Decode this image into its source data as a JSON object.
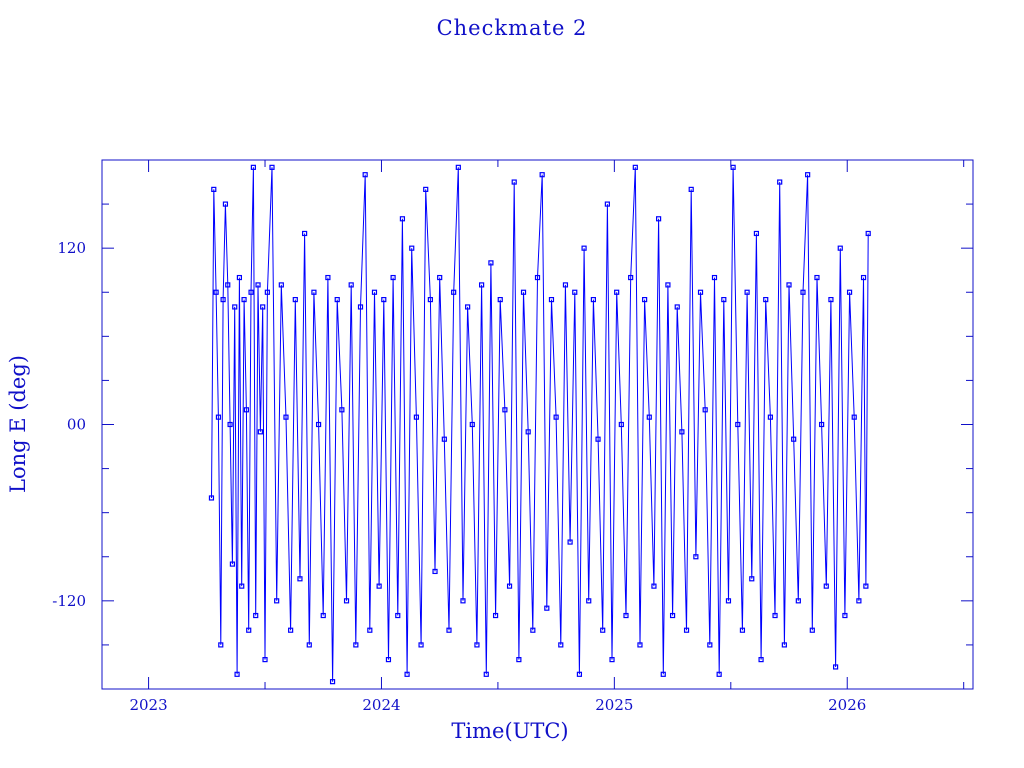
{
  "chart_data": {
    "type": "line",
    "title": "Checkmate 2",
    "xlabel": "Time(UTC)",
    "ylabel": "Long E (deg)",
    "xlim": [
      2022.8,
      2026.54
    ],
    "ylim": [
      -180,
      180
    ],
    "xticks": [
      {
        "value": 2023,
        "label": "2023"
      },
      {
        "value": 2024,
        "label": "2024"
      },
      {
        "value": 2025,
        "label": "2025"
      },
      {
        "value": 2026,
        "label": "2026"
      }
    ],
    "yticks": [
      {
        "value": 120,
        "label": "120"
      },
      {
        "value": 0,
        "label": "00"
      },
      {
        "value": -120,
        "label": "-120"
      }
    ],
    "markers": "square",
    "color": "#0000ff",
    "series": [
      {
        "name": "Checkmate 2",
        "points": [
          [
            2023.27,
            -50
          ],
          [
            2023.28,
            160
          ],
          [
            2023.29,
            90
          ],
          [
            2023.3,
            5
          ],
          [
            2023.31,
            -150
          ],
          [
            2023.32,
            85
          ],
          [
            2023.33,
            150
          ],
          [
            2023.34,
            95
          ],
          [
            2023.35,
            0
          ],
          [
            2023.36,
            -95
          ],
          [
            2023.37,
            80
          ],
          [
            2023.38,
            -170
          ],
          [
            2023.39,
            100
          ],
          [
            2023.4,
            -110
          ],
          [
            2023.41,
            85
          ],
          [
            2023.42,
            10
          ],
          [
            2023.43,
            -140
          ],
          [
            2023.44,
            90
          ],
          [
            2023.45,
            175
          ],
          [
            2023.46,
            -130
          ],
          [
            2023.47,
            95
          ],
          [
            2023.48,
            -5
          ],
          [
            2023.49,
            80
          ],
          [
            2023.5,
            -160
          ],
          [
            2023.51,
            90
          ],
          [
            2023.53,
            175
          ],
          [
            2023.55,
            -120
          ],
          [
            2023.57,
            95
          ],
          [
            2023.59,
            5
          ],
          [
            2023.61,
            -140
          ],
          [
            2023.63,
            85
          ],
          [
            2023.65,
            -105
          ],
          [
            2023.67,
            130
          ],
          [
            2023.69,
            -150
          ],
          [
            2023.71,
            90
          ],
          [
            2023.73,
            0
          ],
          [
            2023.75,
            -130
          ],
          [
            2023.77,
            100
          ],
          [
            2023.79,
            -175
          ],
          [
            2023.81,
            85
          ],
          [
            2023.83,
            10
          ],
          [
            2023.85,
            -120
          ],
          [
            2023.87,
            95
          ],
          [
            2023.89,
            -150
          ],
          [
            2023.91,
            80
          ],
          [
            2023.93,
            170
          ],
          [
            2023.95,
            -140
          ],
          [
            2023.97,
            90
          ],
          [
            2023.99,
            -110
          ],
          [
            2024.01,
            85
          ],
          [
            2024.03,
            -160
          ],
          [
            2024.05,
            100
          ],
          [
            2024.07,
            -130
          ],
          [
            2024.09,
            140
          ],
          [
            2024.11,
            -170
          ],
          [
            2024.13,
            120
          ],
          [
            2024.15,
            5
          ],
          [
            2024.17,
            -150
          ],
          [
            2024.19,
            160
          ],
          [
            2024.21,
            85
          ],
          [
            2024.23,
            -100
          ],
          [
            2024.25,
            100
          ],
          [
            2024.27,
            -10
          ],
          [
            2024.29,
            -140
          ],
          [
            2024.31,
            90
          ],
          [
            2024.33,
            175
          ],
          [
            2024.35,
            -120
          ],
          [
            2024.37,
            80
          ],
          [
            2024.39,
            0
          ],
          [
            2024.41,
            -150
          ],
          [
            2024.43,
            95
          ],
          [
            2024.45,
            -170
          ],
          [
            2024.47,
            110
          ],
          [
            2024.49,
            -130
          ],
          [
            2024.51,
            85
          ],
          [
            2024.53,
            10
          ],
          [
            2024.55,
            -110
          ],
          [
            2024.57,
            165
          ],
          [
            2024.59,
            -160
          ],
          [
            2024.61,
            90
          ],
          [
            2024.63,
            -5
          ],
          [
            2024.65,
            -140
          ],
          [
            2024.67,
            100
          ],
          [
            2024.69,
            170
          ],
          [
            2024.71,
            -125
          ],
          [
            2024.73,
            85
          ],
          [
            2024.75,
            5
          ],
          [
            2024.77,
            -150
          ],
          [
            2024.79,
            95
          ],
          [
            2024.81,
            -80
          ],
          [
            2024.83,
            90
          ],
          [
            2024.85,
            -170
          ],
          [
            2024.87,
            120
          ],
          [
            2024.89,
            -120
          ],
          [
            2024.91,
            85
          ],
          [
            2024.93,
            -10
          ],
          [
            2024.95,
            -140
          ],
          [
            2024.97,
            150
          ],
          [
            2024.99,
            -160
          ],
          [
            2025.01,
            90
          ],
          [
            2025.03,
            0
          ],
          [
            2025.05,
            -130
          ],
          [
            2025.07,
            100
          ],
          [
            2025.09,
            175
          ],
          [
            2025.11,
            -150
          ],
          [
            2025.13,
            85
          ],
          [
            2025.15,
            5
          ],
          [
            2025.17,
            -110
          ],
          [
            2025.19,
            140
          ],
          [
            2025.21,
            -170
          ],
          [
            2025.23,
            95
          ],
          [
            2025.25,
            -130
          ],
          [
            2025.27,
            80
          ],
          [
            2025.29,
            -5
          ],
          [
            2025.31,
            -140
          ],
          [
            2025.33,
            160
          ],
          [
            2025.35,
            -90
          ],
          [
            2025.37,
            90
          ],
          [
            2025.39,
            10
          ],
          [
            2025.41,
            -150
          ],
          [
            2025.43,
            100
          ],
          [
            2025.45,
            -170
          ],
          [
            2025.47,
            85
          ],
          [
            2025.49,
            -120
          ],
          [
            2025.51,
            175
          ],
          [
            2025.53,
            0
          ],
          [
            2025.55,
            -140
          ],
          [
            2025.57,
            90
          ],
          [
            2025.59,
            -105
          ],
          [
            2025.61,
            130
          ],
          [
            2025.63,
            -160
          ],
          [
            2025.65,
            85
          ],
          [
            2025.67,
            5
          ],
          [
            2025.69,
            -130
          ],
          [
            2025.71,
            165
          ],
          [
            2025.73,
            -150
          ],
          [
            2025.75,
            95
          ],
          [
            2025.77,
            -10
          ],
          [
            2025.79,
            -120
          ],
          [
            2025.81,
            90
          ],
          [
            2025.83,
            170
          ],
          [
            2025.85,
            -140
          ],
          [
            2025.87,
            100
          ],
          [
            2025.89,
            0
          ],
          [
            2025.91,
            -110
          ],
          [
            2025.93,
            85
          ],
          [
            2025.95,
            -165
          ],
          [
            2025.97,
            120
          ],
          [
            2025.99,
            -130
          ],
          [
            2026.01,
            90
          ],
          [
            2026.03,
            5
          ],
          [
            2026.05,
            -120
          ],
          [
            2026.07,
            100
          ],
          [
            2026.08,
            -110
          ],
          [
            2026.09,
            130
          ]
        ]
      }
    ]
  }
}
